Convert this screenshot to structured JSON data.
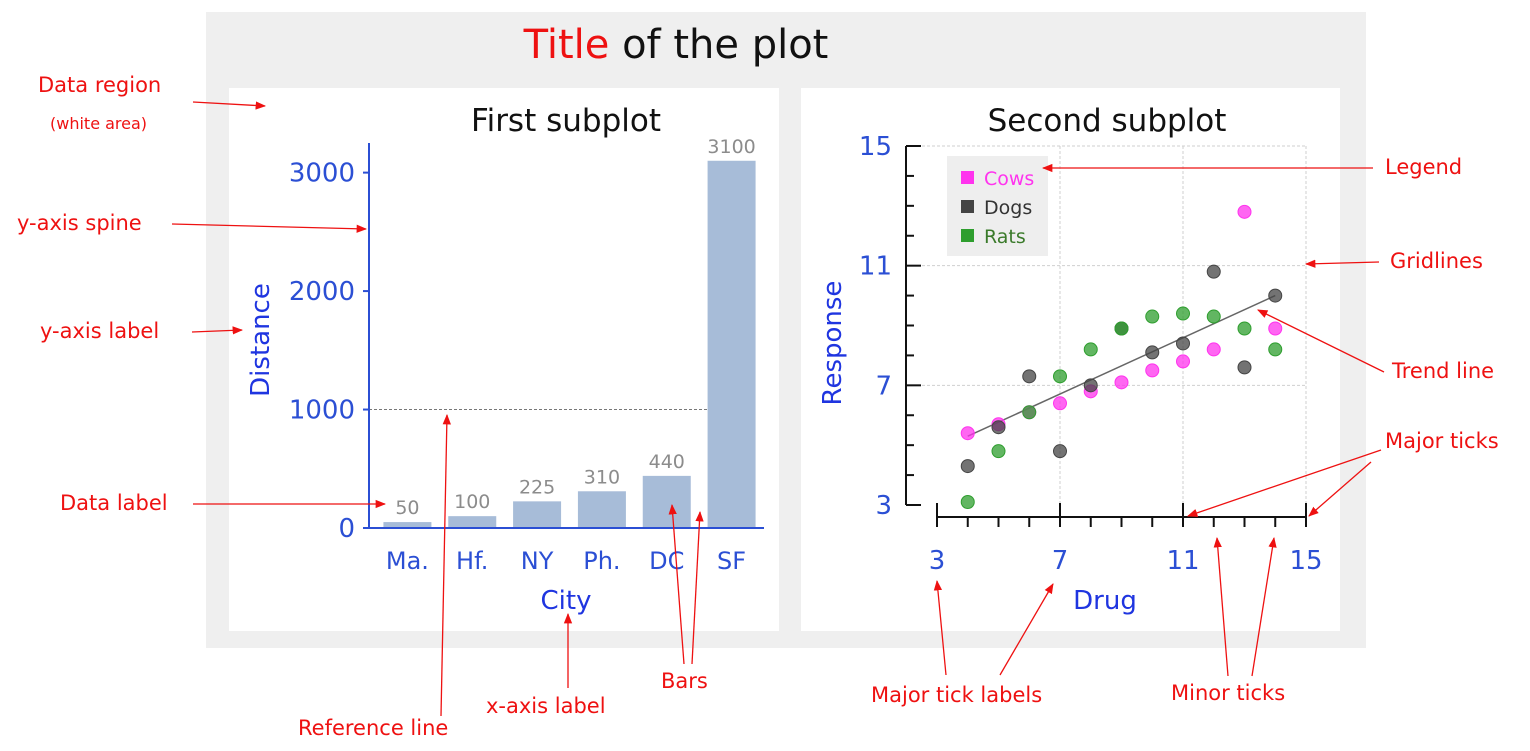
{
  "figure": {
    "title_red": "Title",
    "title_rest": " of the plot",
    "colors": {
      "annotation": "#ee1111",
      "axis": "#2b4fd4",
      "bar": "#a7bcd8",
      "data_label": "#8c8c8c",
      "cows": "#ff33ee",
      "dogs": "#444444",
      "rats": "#2e9e2e",
      "figure_bg": "#efefef"
    }
  },
  "annotations": {
    "data_region": "Data region",
    "white_area": "(white area)",
    "y_axis_spine": "y-axis spine",
    "y_axis_label": "y-axis label",
    "data_label": "Data label",
    "reference_line": "Reference line",
    "x_axis_label": "x-axis label",
    "bars": "Bars",
    "legend": "Legend",
    "gridlines": "Gridlines",
    "trend_line": "Trend line",
    "major_ticks": "Major ticks",
    "major_tick_labels": "Major tick labels",
    "minor_ticks": "Minor ticks"
  },
  "chart_data": [
    {
      "type": "bar",
      "title": "First subplot",
      "xlabel": "City",
      "ylabel": "Distance",
      "categories": [
        "Ma.",
        "Hf.",
        "NY",
        "Ph.",
        "DC",
        "SF"
      ],
      "values": [
        50,
        100,
        225,
        310,
        440,
        3100
      ],
      "data_labels": [
        "50",
        "100",
        "225",
        "310",
        "440",
        "3100"
      ],
      "ylim": [
        0,
        3250
      ],
      "yticks": [
        0,
        1000,
        2000,
        3000
      ],
      "ytick_labels": [
        "0",
        "1000",
        "2000",
        "3000"
      ],
      "reference_line": 1000,
      "grid": false
    },
    {
      "type": "scatter",
      "title": "Second subplot",
      "xlabel": "Drug",
      "ylabel": "Response",
      "xlim": [
        3,
        15
      ],
      "ylim": [
        3,
        15
      ],
      "xticks": [
        3,
        7,
        11,
        15
      ],
      "xtick_labels": [
        "3",
        "7",
        "11",
        "15"
      ],
      "yticks": [
        3,
        7,
        11,
        15
      ],
      "ytick_labels": [
        "3",
        "7",
        "11",
        "15"
      ],
      "grid": true,
      "legend_position": "top-left",
      "series": [
        {
          "name": "Cows",
          "x": [
            4,
            5,
            6,
            7,
            8,
            9,
            10,
            11,
            12,
            13,
            14
          ],
          "y": [
            5.4,
            5.7,
            6.1,
            6.4,
            6.8,
            7.1,
            7.5,
            7.8,
            8.2,
            12.8,
            8.9
          ]
        },
        {
          "name": "Dogs",
          "x": [
            4,
            5,
            6,
            7,
            8,
            9,
            10,
            11,
            12,
            13,
            14
          ],
          "y": [
            4.3,
            5.6,
            7.3,
            4.8,
            7.0,
            8.9,
            8.1,
            8.4,
            10.8,
            7.6,
            10.0
          ]
        },
        {
          "name": "Rats",
          "x": [
            4,
            5,
            6,
            7,
            8,
            9,
            10,
            11,
            12,
            13,
            14
          ],
          "y": [
            3.1,
            4.8,
            6.1,
            7.3,
            8.2,
            8.9,
            9.3,
            9.4,
            9.3,
            8.9,
            8.2
          ]
        }
      ],
      "trend_line": {
        "x": [
          4,
          14
        ],
        "y": [
          5.3,
          10.0
        ]
      }
    }
  ]
}
